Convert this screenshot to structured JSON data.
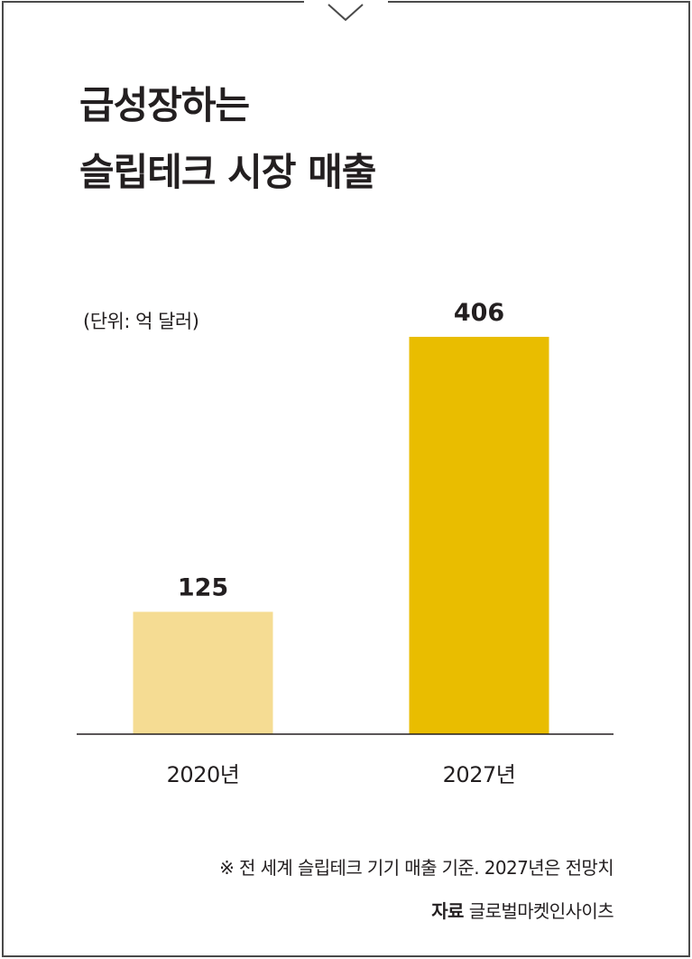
{
  "title_lines": [
    "급성장하는",
    "슬립테크 시장 매출"
  ],
  "unit_label": "(단위: 억 달러)",
  "chart_data": {
    "type": "bar",
    "categories": [
      "2020년",
      "2027년"
    ],
    "values": [
      125,
      406
    ],
    "colors": [
      "#f5dc93",
      "#e9bd00"
    ],
    "title": "급성장하는 슬립테크 시장 매출",
    "ylabel": "",
    "ylim": [
      0,
      406
    ]
  },
  "footnote": "※ 전 세계 슬립테크 기기 매출 기준. 2027년은 전망치",
  "source": {
    "label": "자료",
    "value": "글로벌마켓인사이츠"
  },
  "colors": {
    "text": "#231f20",
    "frame": "#4a4a4a"
  }
}
